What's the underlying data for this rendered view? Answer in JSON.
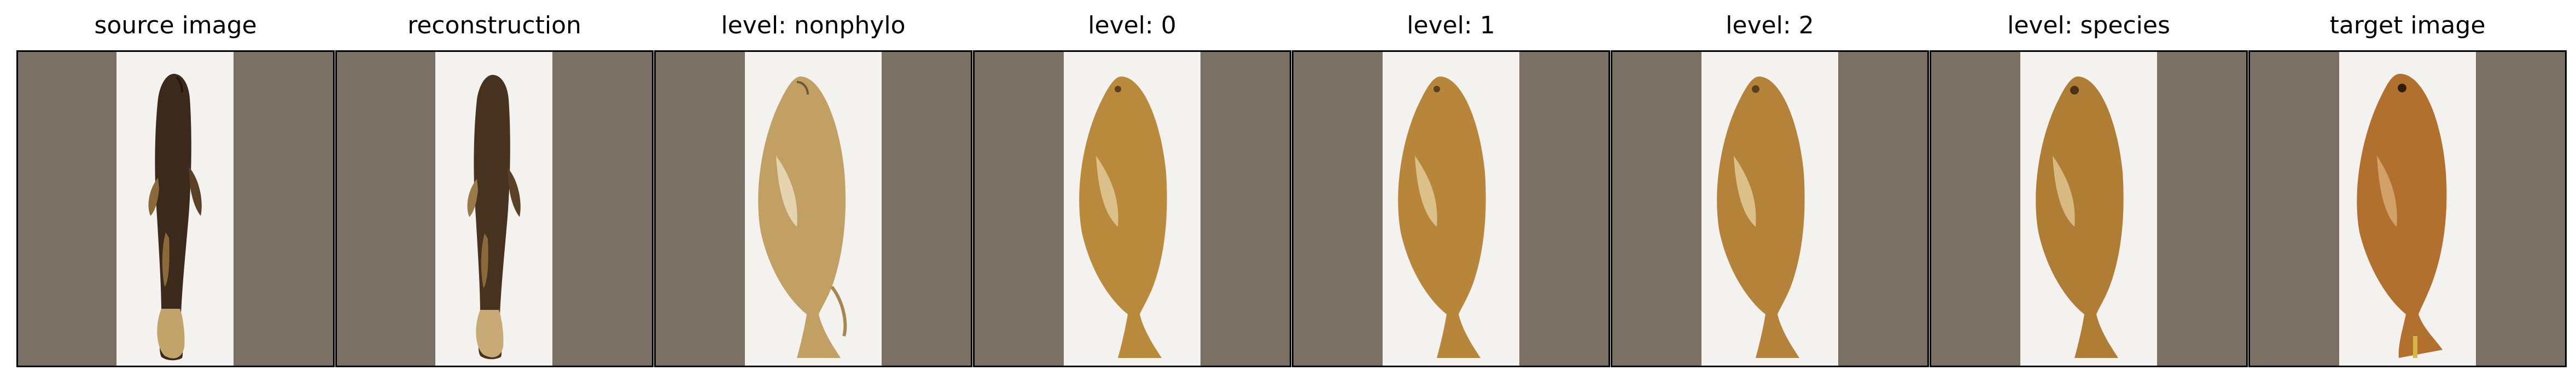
{
  "panels": [
    {
      "title": "source image",
      "kind": "catfish"
    },
    {
      "title": "reconstruction",
      "kind": "catfish"
    },
    {
      "title": "level: nonphylo",
      "kind": "sunfish",
      "variant": "pale"
    },
    {
      "title": "level: 0",
      "kind": "sunfish",
      "variant": "golden"
    },
    {
      "title": "level: 1",
      "kind": "sunfish",
      "variant": "golden"
    },
    {
      "title": "level: 2",
      "kind": "sunfish",
      "variant": "golden"
    },
    {
      "title": "level: species",
      "kind": "sunfish",
      "variant": "golden"
    },
    {
      "title": "target image",
      "kind": "sunfish",
      "variant": "target"
    }
  ],
  "colors": {
    "frame_bg": "#7a7063",
    "specimen_bg": "#f3f2ee",
    "catfish_dark": "#3b2a1c",
    "catfish_light": "#8a6a3a",
    "sunfish_pale": "#c2a064",
    "sunfish_golden": "#b98a3c",
    "sunfish_target": "#b2702e"
  }
}
